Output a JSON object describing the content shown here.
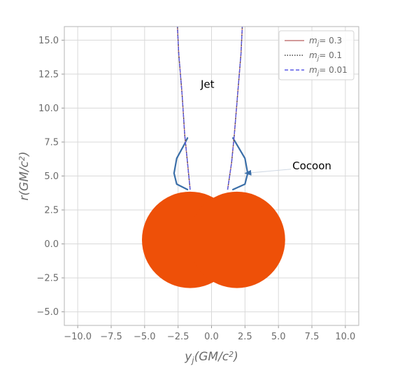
{
  "chart_data": {
    "type": "line",
    "title": "",
    "xlabel": {
      "base": "y",
      "sub": "j",
      "rest": "(GM/c",
      "sup": "2",
      "close": ")"
    },
    "ylabel": {
      "base": "r(GM/c",
      "sup": "2",
      "close": ")"
    },
    "xlim": [
      -11.0,
      11.0
    ],
    "ylim": [
      -6.0,
      16.0
    ],
    "xticks": [
      -10.0,
      -7.5,
      -5.0,
      -2.5,
      0.0,
      2.5,
      5.0,
      7.5,
      10.0
    ],
    "xtick_labels": [
      "−10.0",
      "−7.5",
      "−5.0",
      "−2.5",
      "0.0",
      "2.5",
      "5.0",
      "7.5",
      "10.0"
    ],
    "yticks": [
      -5.0,
      -2.5,
      0.0,
      2.5,
      5.0,
      7.5,
      10.0,
      12.5,
      15.0
    ],
    "ytick_labels": [
      "−5.0",
      "−2.5",
      "0.0",
      "2.5",
      "5.0",
      "7.5",
      "10.0",
      "12.5",
      "15.0"
    ],
    "grid": true,
    "legend_position": "top-right",
    "series": [
      {
        "name_base": "m",
        "name_sub": "j",
        "name_value": "= 0.3",
        "color": "#c47a7a",
        "style": "solid",
        "left": [
          [
            -1.6,
            4.0
          ],
          [
            -1.8,
            6.0
          ],
          [
            -2.0,
            8.0
          ],
          [
            -2.2,
            11.0
          ],
          [
            -2.45,
            14.0
          ],
          [
            -2.55,
            16.0
          ]
        ],
        "right": [
          [
            1.2,
            4.0
          ],
          [
            1.5,
            6.0
          ],
          [
            1.7,
            8.0
          ],
          [
            1.95,
            11.0
          ],
          [
            2.2,
            14.0
          ],
          [
            2.3,
            16.0
          ]
        ]
      },
      {
        "name_base": "m",
        "name_sub": "j",
        "name_value": "= 0.1",
        "color": "#404040",
        "style": "dotted",
        "left": [
          [
            -1.6,
            4.0
          ],
          [
            -1.8,
            6.0
          ],
          [
            -2.0,
            8.0
          ],
          [
            -2.2,
            11.0
          ],
          [
            -2.45,
            14.0
          ],
          [
            -2.55,
            16.0
          ]
        ],
        "right": [
          [
            1.2,
            4.0
          ],
          [
            1.5,
            6.0
          ],
          [
            1.7,
            8.0
          ],
          [
            1.95,
            11.0
          ],
          [
            2.2,
            14.0
          ],
          [
            2.3,
            16.0
          ]
        ]
      },
      {
        "name_base": "m",
        "name_sub": "j",
        "name_value": "= 0.01",
        "color": "#5a5ae6",
        "style": "dashed",
        "left": [
          [
            -1.6,
            4.0
          ],
          [
            -1.8,
            6.0
          ],
          [
            -2.0,
            8.0
          ],
          [
            -2.2,
            11.0
          ],
          [
            -2.45,
            14.0
          ],
          [
            -2.55,
            16.0
          ]
        ],
        "right": [
          [
            1.2,
            4.0
          ],
          [
            1.5,
            6.0
          ],
          [
            1.7,
            8.0
          ],
          [
            1.95,
            11.0
          ],
          [
            2.2,
            14.0
          ],
          [
            2.3,
            16.0
          ]
        ]
      }
    ],
    "cocoon": {
      "color": "#3a6ea8",
      "left": [
        [
          -1.8,
          4.0
        ],
        [
          -2.6,
          4.4
        ],
        [
          -2.8,
          5.2
        ],
        [
          -2.6,
          6.3
        ],
        [
          -2.05,
          7.3
        ],
        [
          -1.8,
          7.8
        ]
      ],
      "right": [
        [
          1.6,
          4.0
        ],
        [
          2.5,
          4.4
        ],
        [
          2.7,
          5.2
        ],
        [
          2.5,
          6.3
        ],
        [
          1.9,
          7.3
        ],
        [
          1.6,
          7.8
        ]
      ]
    },
    "circles": [
      {
        "cx": -1.6,
        "cy": 0.3,
        "r": 3.6,
        "color": "#ee5008"
      },
      {
        "cx": 1.9,
        "cy": 0.3,
        "r": 3.6,
        "color": "#ee5008"
      }
    ],
    "annotations": [
      {
        "text": "Jet",
        "x": -0.3,
        "y": 11.5
      },
      {
        "text": "Cocoon",
        "x": 7.5,
        "y": 5.5,
        "arrow_to": [
          2.5,
          5.2
        ]
      }
    ]
  }
}
